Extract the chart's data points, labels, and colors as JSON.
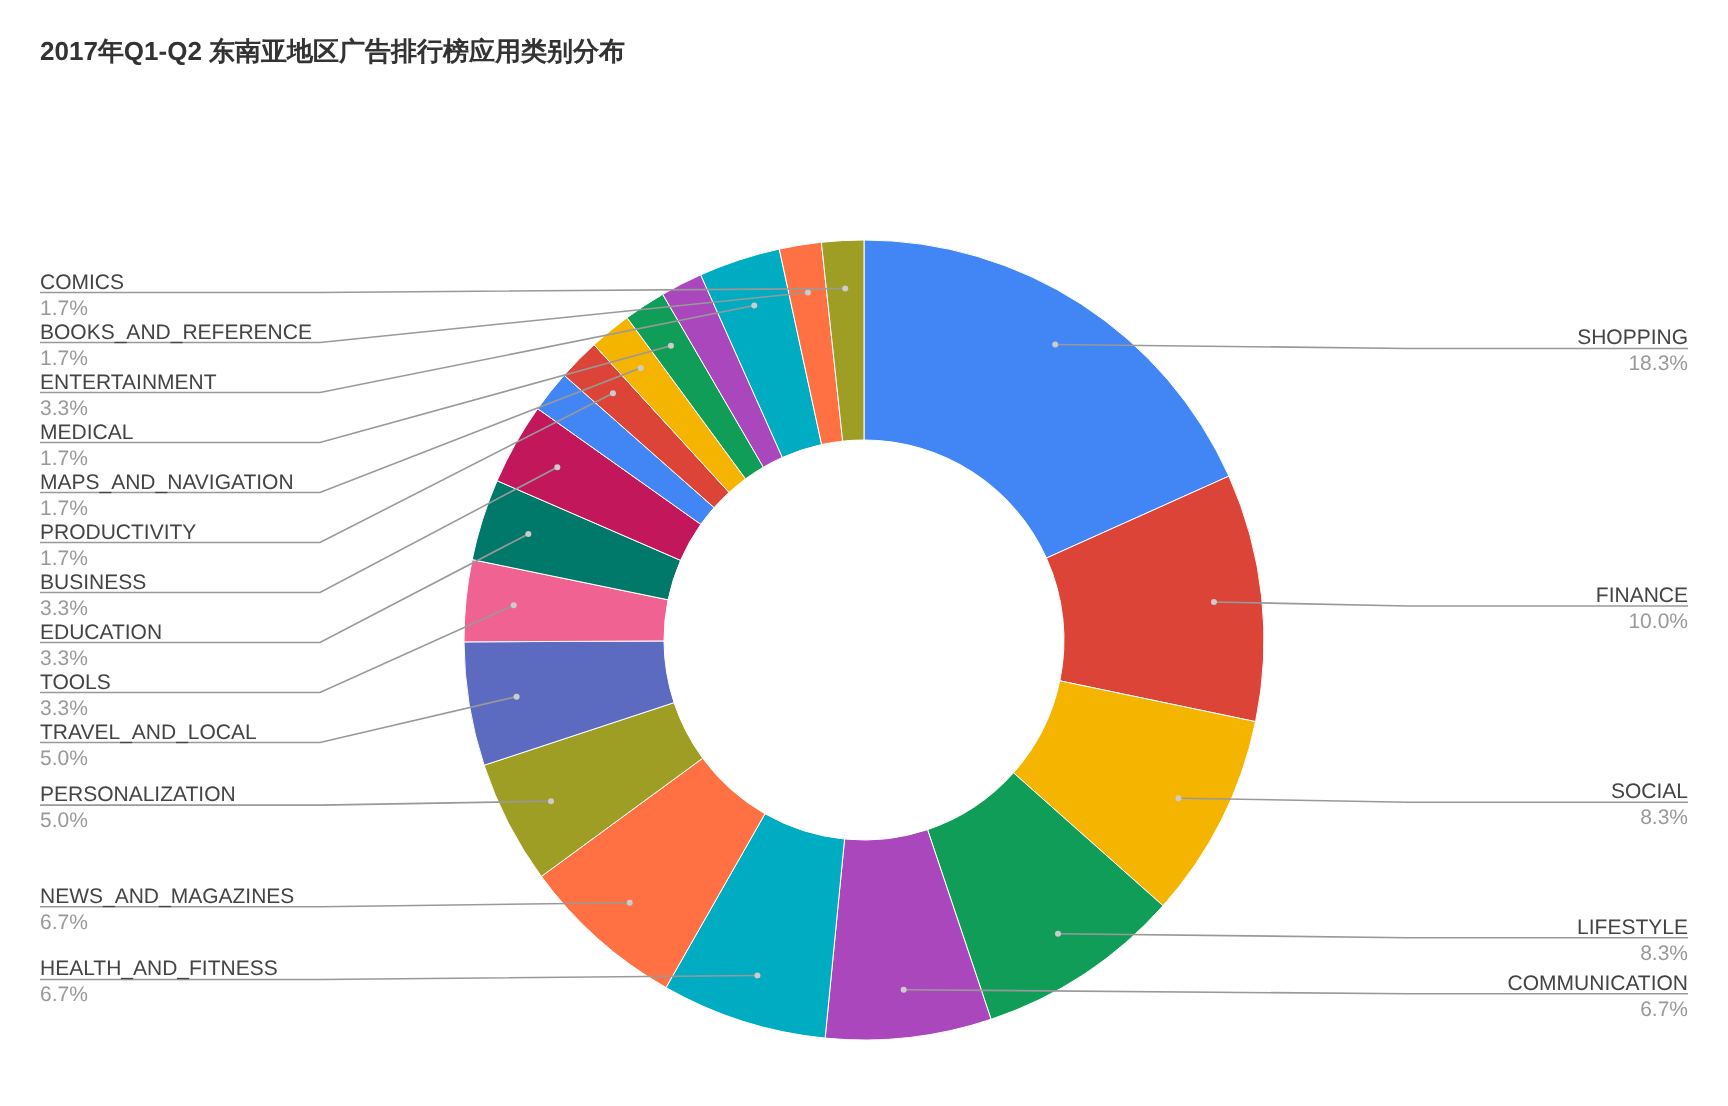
{
  "chart_data": {
    "type": "donut",
    "title": "2017年Q1-Q2 东南亚地区广告排行榜应用类别分布",
    "categories": [
      "SHOPPING",
      "FINANCE",
      "SOCIAL",
      "LIFESTYLE",
      "COMMUNICATION",
      "HEALTH_AND_FITNESS",
      "NEWS_AND_MAGAZINES",
      "PERSONALIZATION",
      "TRAVEL_AND_LOCAL",
      "TOOLS",
      "EDUCATION",
      "BUSINESS",
      null,
      "PRODUCTIVITY",
      "MAPS_AND_NAVIGATION",
      "MEDICAL",
      null,
      "ENTERTAINMENT",
      "BOOKS_AND_REFERENCE",
      "COMICS"
    ],
    "values": [
      18.3,
      10.0,
      8.3,
      8.3,
      6.7,
      6.7,
      6.7,
      5.0,
      5.0,
      3.3,
      3.3,
      3.3,
      1.7,
      1.7,
      1.7,
      1.7,
      1.7,
      3.3,
      1.7,
      1.7
    ],
    "value_labels": [
      "18.3%",
      "10.0%",
      "8.3%",
      "8.3%",
      "6.7%",
      "6.7%",
      "6.7%",
      "5.0%",
      "5.0%",
      "3.3%",
      "3.3%",
      "3.3%",
      null,
      "1.7%",
      "1.7%",
      "1.7%",
      null,
      "3.3%",
      "1.7%",
      "1.7%"
    ],
    "colors": [
      "#4285f4",
      "#db4437",
      "#f4b400",
      "#0f9d58",
      "#ab47bc",
      "#00acc1",
      "#ff7043",
      "#9e9d24",
      "#5c6bc0",
      "#f06292",
      "#00796b",
      "#c2185b",
      "#4285f4",
      "#db4437",
      "#f4b400",
      "#0f9d58",
      "#ab47bc",
      "#00acc1",
      "#ff7043",
      "#9e9d24"
    ]
  }
}
